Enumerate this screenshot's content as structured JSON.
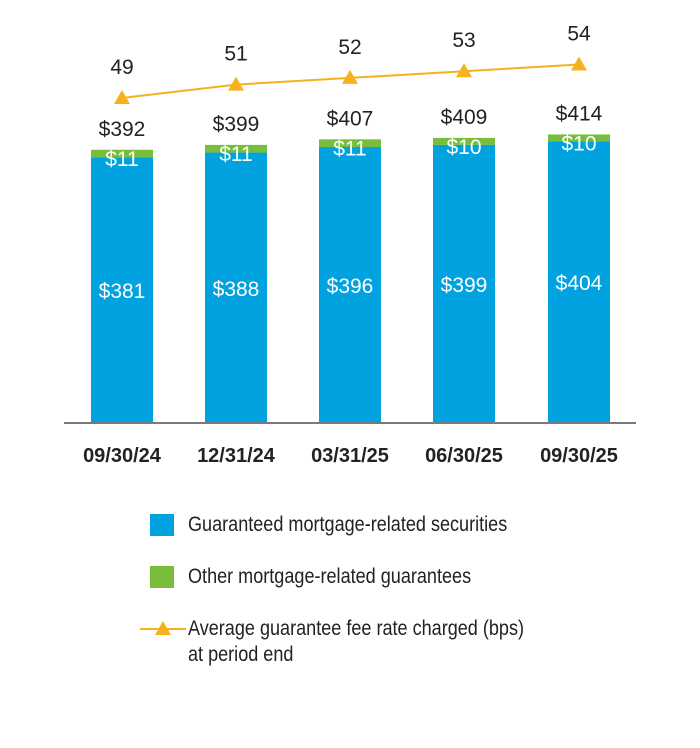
{
  "chart_data": {
    "type": "bar",
    "stacked": true,
    "categories": [
      "09/30/24",
      "12/31/24",
      "03/31/25",
      "06/30/25",
      "09/30/25"
    ],
    "series": [
      {
        "name": "Guaranteed mortgage-related securities",
        "values": [
          381,
          388,
          396,
          399,
          404
        ],
        "color": "#00a3e0"
      },
      {
        "name": "Other mortgage-related guarantees",
        "values": [
          11,
          11,
          11,
          10,
          10
        ],
        "color": "#78be3c"
      }
    ],
    "totals": [
      392,
      399,
      407,
      409,
      414
    ],
    "line": {
      "name": "Average guarantee fee rate charged (bps) at period end",
      "values": [
        49,
        51,
        52,
        53,
        54
      ],
      "color": "#f6b21c"
    },
    "ylim": [
      0,
      430
    ],
    "grid": false,
    "legend_position": "bottom",
    "title": "",
    "xlabel": "",
    "ylabel": ""
  },
  "legend": {
    "items": [
      {
        "label": "Guaranteed mortgage-related securities",
        "color": "#00a3e0"
      },
      {
        "label": "Other mortgage-related guarantees",
        "color": "#78be3c"
      }
    ],
    "line_label_1": "Average guarantee fee rate charged (bps)",
    "line_label_2": "at period end",
    "line_color": "#f6b21c"
  }
}
